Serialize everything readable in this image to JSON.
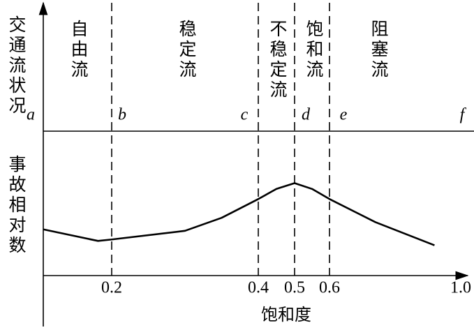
{
  "chart_data": {
    "type": "line",
    "y_label_top": "交通流状况",
    "y_label_bottom": "事故相对数",
    "x_label": "饱和度",
    "regions": [
      "自由流",
      "稳定流",
      "不稳定流",
      "饱和流",
      "阻塞流"
    ],
    "points": [
      "a",
      "b",
      "c",
      "d",
      "e",
      "f"
    ],
    "x": [
      0.1,
      0.18,
      0.2,
      0.3,
      0.35,
      0.4,
      0.45,
      0.5,
      0.55,
      0.6,
      0.74,
      0.92
    ],
    "values": [
      0.32,
      0.24,
      0.25,
      0.31,
      0.4,
      0.53,
      0.6,
      0.64,
      0.6,
      0.53,
      0.37,
      0.21
    ],
    "color": "#000000",
    "xlim": [
      0.1,
      1.0
    ],
    "ylim": [
      0,
      1
    ],
    "xticks": [
      0.2,
      0.4,
      0.5,
      0.6,
      {
        "value": 1,
        "label": "1.0"
      }
    ]
  }
}
